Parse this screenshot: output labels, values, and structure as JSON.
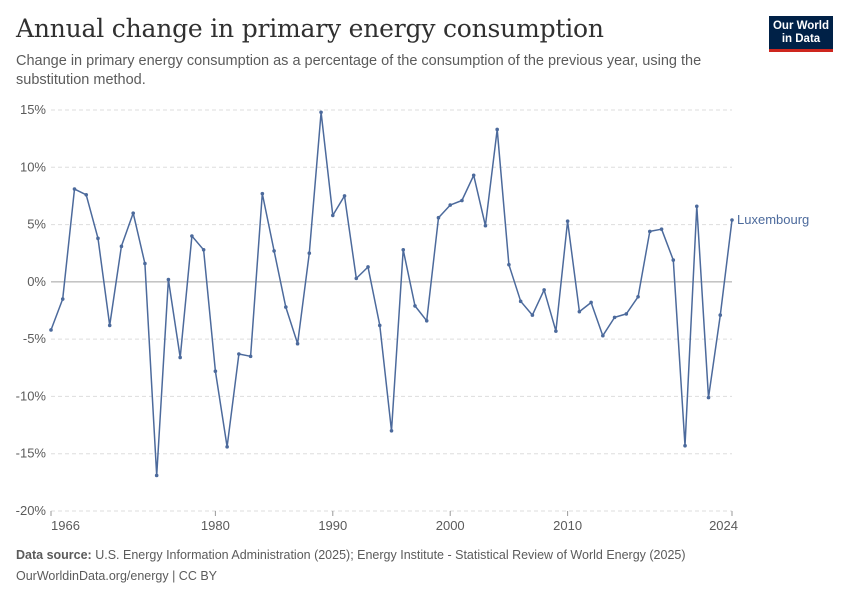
{
  "header": {
    "title": "Annual change in primary energy consumption",
    "subtitle": "Change in primary energy consumption as a percentage of the consumption of the previous year, using the substitution method.",
    "logo_line1": "Our World",
    "logo_line2": "in Data"
  },
  "footer": {
    "source_label": "Data source:",
    "source_text": "U.S. Energy Information Administration (2025); Energy Institute - Statistical Review of World Energy (2025)",
    "credit": "OurWorldinData.org/energy | CC BY"
  },
  "colors": {
    "series": "#4c6a9c",
    "grid": "#dddddd",
    "zero_line": "#a1a1a1",
    "text": "#5b5b5b",
    "logo_bg": "#002147",
    "logo_accent": "#ce261e"
  },
  "chart_data": {
    "type": "line",
    "x_ticks": [
      1966,
      1980,
      1990,
      2000,
      2010,
      2024
    ],
    "y_ticks": [
      -20,
      -15,
      -10,
      -5,
      0,
      5,
      10,
      15
    ],
    "y_tick_labels": [
      "-20%",
      "-15%",
      "-10%",
      "-5%",
      "0%",
      "5%",
      "10%",
      "15%"
    ],
    "xlim": [
      1966,
      2024
    ],
    "ylim": [
      -20,
      15
    ],
    "grid": true,
    "series": [
      {
        "name": "Luxembourg",
        "x": [
          1966,
          1967,
          1968,
          1969,
          1970,
          1971,
          1972,
          1973,
          1974,
          1975,
          1976,
          1977,
          1978,
          1979,
          1980,
          1981,
          1982,
          1983,
          1984,
          1985,
          1986,
          1987,
          1988,
          1989,
          1990,
          1991,
          1992,
          1993,
          1994,
          1995,
          1996,
          1997,
          1998,
          1999,
          2000,
          2001,
          2002,
          2003,
          2004,
          2005,
          2006,
          2007,
          2008,
          2009,
          2010,
          2011,
          2012,
          2013,
          2014,
          2015,
          2016,
          2017,
          2018,
          2019,
          2020,
          2021,
          2022,
          2023,
          2024
        ],
        "y": [
          -4.2,
          -1.5,
          8.1,
          7.6,
          3.8,
          -3.8,
          3.1,
          6.0,
          1.6,
          -16.9,
          0.2,
          -6.6,
          4.0,
          2.8,
          -7.8,
          -14.4,
          -6.3,
          -6.5,
          7.7,
          2.7,
          -2.2,
          -5.4,
          2.5,
          14.8,
          5.8,
          7.5,
          0.3,
          1.3,
          -3.8,
          -13.0,
          2.8,
          -2.1,
          -3.4,
          5.6,
          6.7,
          7.1,
          9.3,
          4.9,
          13.3,
          1.5,
          -1.7,
          -2.9,
          -0.7,
          -4.3,
          5.3,
          -2.6,
          -1.8,
          -4.7,
          -3.1,
          -2.8,
          -1.3,
          4.4,
          4.6,
          1.9,
          -14.3,
          6.6,
          -10.1,
          -2.9,
          5.4
        ]
      }
    ]
  }
}
